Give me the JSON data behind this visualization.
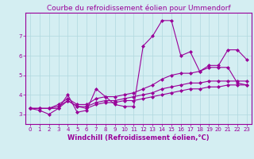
{
  "title": "Courbe du refroidissement éolien pour Ummendorf",
  "xlabel": "Windchill (Refroidissement éolien,°C)",
  "background_color": "#d4eef2",
  "grid_color": "#b0d8de",
  "line_color": "#990099",
  "x_ticks": [
    0,
    1,
    2,
    3,
    4,
    5,
    6,
    7,
    8,
    9,
    10,
    11,
    12,
    13,
    14,
    15,
    16,
    17,
    18,
    19,
    20,
    21,
    22,
    23
  ],
  "ylim": [
    2.5,
    8.2
  ],
  "xlim": [
    -0.5,
    23.5
  ],
  "series": [
    [
      3.3,
      3.2,
      3.0,
      3.3,
      4.0,
      3.1,
      3.2,
      4.3,
      3.9,
      3.5,
      3.4,
      3.4,
      6.5,
      7.0,
      7.8,
      7.8,
      6.0,
      6.2,
      5.2,
      5.5,
      5.5,
      6.3,
      6.3,
      5.8
    ],
    [
      3.3,
      3.3,
      3.3,
      3.3,
      3.7,
      3.4,
      3.3,
      3.5,
      3.6,
      3.6,
      3.7,
      3.7,
      3.8,
      3.9,
      4.0,
      4.1,
      4.2,
      4.3,
      4.3,
      4.4,
      4.4,
      4.5,
      4.5,
      4.5
    ],
    [
      3.3,
      3.3,
      3.3,
      3.4,
      3.7,
      3.4,
      3.4,
      3.6,
      3.7,
      3.7,
      3.8,
      3.9,
      4.0,
      4.1,
      4.3,
      4.4,
      4.5,
      4.6,
      4.6,
      4.7,
      4.7,
      4.7,
      4.7,
      4.7
    ],
    [
      3.3,
      3.3,
      3.3,
      3.5,
      3.8,
      3.5,
      3.5,
      3.8,
      3.9,
      3.9,
      4.0,
      4.1,
      4.3,
      4.5,
      4.8,
      5.0,
      5.1,
      5.1,
      5.2,
      5.4,
      5.4,
      5.4,
      4.6,
      4.5
    ]
  ],
  "marker": "D",
  "markersize": 2.0,
  "linewidth": 0.8,
  "title_fontsize": 6.5,
  "tick_fontsize": 5.0,
  "xlabel_fontsize": 6.0,
  "yticks": [
    3,
    4,
    5,
    6,
    7
  ]
}
